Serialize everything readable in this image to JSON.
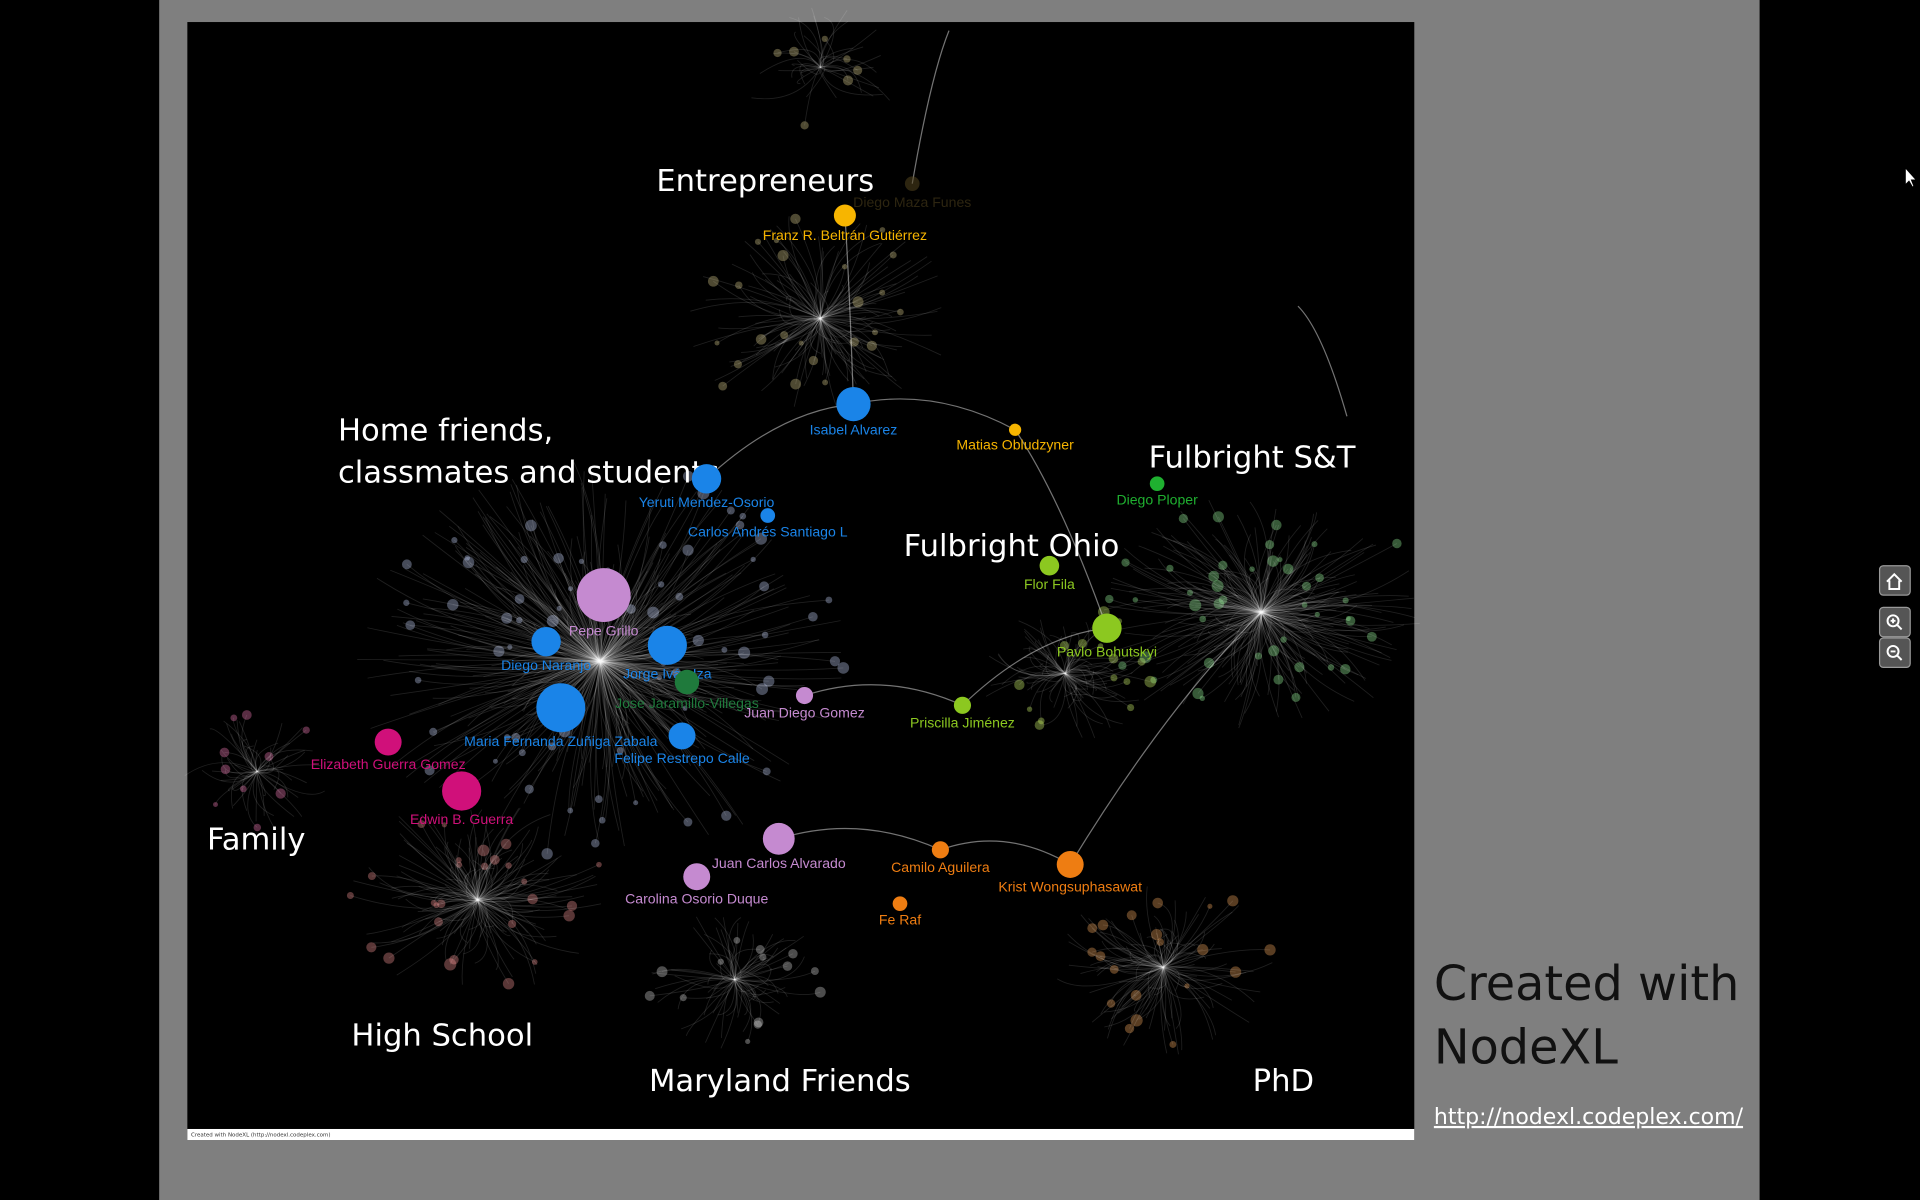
{
  "slide": {
    "clusters": [
      {
        "lines": [
          "Entrepreneurs"
        ]
      },
      {
        "lines": [
          "Home friends,",
          "classmates and students"
        ]
      },
      {
        "lines": [
          "Fulbright S&T"
        ]
      },
      {
        "lines": [
          "Fulbright Ohio"
        ]
      },
      {
        "lines": [
          "Family"
        ]
      },
      {
        "lines": [
          "High School"
        ]
      },
      {
        "lines": [
          "Maryland Friends"
        ]
      },
      {
        "lines": [
          "PhD"
        ]
      }
    ],
    "nodes": [
      "Franz R. Beltrán Gutiérrez",
      "Diego Maza Funes",
      "Isabel Alvarez",
      "Matias Obludzyner",
      "Yeruti Mendez-Osorio",
      "Carlos Andrés Santiago L",
      "Pepe Grillo",
      "Diego Naranjo",
      "Jorge Iván Iza",
      "Jose Jaramillo-Villegas",
      "Juan Diego Gomez",
      "Maria Fernanda Zuñiga Zabala",
      "Felipe Restrepo Calle",
      "Elizabeth Guerra Gomez",
      "Edwin B. Guerra",
      "Juan Carlos Alvarado",
      "Carolina Osorio Duque",
      "Camilo Aguilera",
      "Fe Raf",
      "Krist Wongsuphasawat",
      "Priscilla Jiménez",
      "Flor Fila",
      "Pavlo Bohutskyi",
      "Diego Ploper"
    ],
    "side_title": [
      "Created with",
      "NodeXL"
    ],
    "link": "http://nodexl.codeplex.com/",
    "footer": "Created with NodeXL (http://nodexl.codeplex.com)"
  }
}
